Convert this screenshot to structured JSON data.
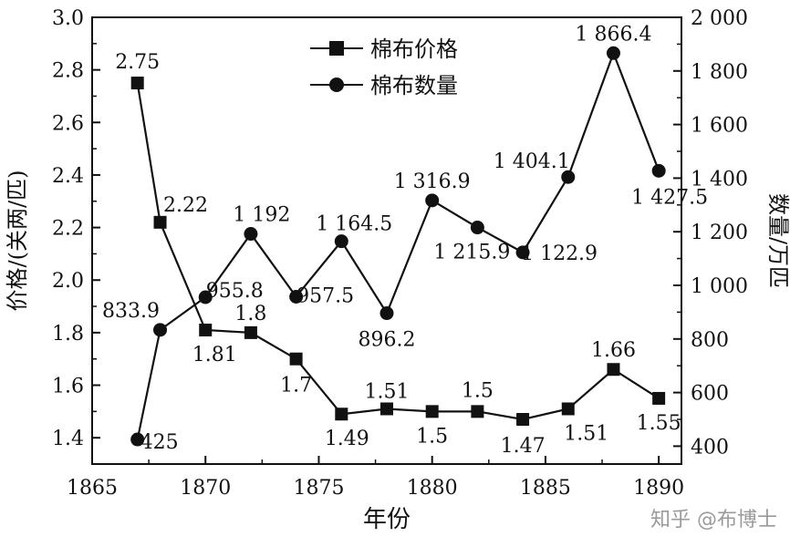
{
  "chart_data": {
    "type": "line",
    "x": [
      1867,
      1868,
      1870,
      1872,
      1874,
      1876,
      1878,
      1880,
      1882,
      1884,
      1886,
      1888,
      1890
    ],
    "series": [
      {
        "name": "棉布价格",
        "axis": "left",
        "marker": "square",
        "values": [
          2.75,
          2.22,
          1.81,
          1.8,
          1.7,
          1.49,
          1.51,
          1.5,
          1.5,
          1.47,
          1.51,
          1.66,
          1.55
        ],
        "labels": [
          "2.75",
          "2.22",
          "1.81",
          "1.8",
          "1.7",
          "1.49",
          "1.51",
          "1.5",
          "1.5",
          "1.47",
          "1.51",
          "1.66",
          "1.55"
        ]
      },
      {
        "name": "棉布数量",
        "axis": "right",
        "marker": "circle",
        "values": [
          425,
          833.9,
          955.8,
          1192,
          957.5,
          1164.5,
          896.2,
          1316.9,
          1215.9,
          1122.9,
          1404.1,
          1866.4,
          1427.5
        ],
        "labels": [
          "425",
          "833.9",
          "955.8",
          "1 192",
          "957.5",
          "1 164.5",
          "896.2",
          "1 316.9",
          "1 215.9",
          "1 122.9",
          "1 404.1",
          "1 866.4",
          "1 427.5"
        ]
      }
    ],
    "xlabel": "年份",
    "ylabel_left": "价格/(关两/匹)",
    "ylabel_right": "数量/万匹",
    "xlim": [
      1865,
      1891
    ],
    "ylim_left": [
      1.3,
      3.0
    ],
    "ylim_right": [
      333.33,
      2000
    ],
    "xticks": [
      "1865",
      "1870",
      "1875",
      "1880",
      "1885",
      "1890"
    ],
    "yticks_left": [
      "1.4",
      "1.6",
      "1.8",
      "2.0",
      "2.2",
      "2.4",
      "2.6",
      "2.8",
      "3.0"
    ],
    "yticks_right": [
      "400",
      "600",
      "800",
      "1 000",
      "1 200",
      "1 400",
      "1 600",
      "1 800",
      "2 000"
    ],
    "legend_position": "top-center",
    "grid": false
  },
  "watermark": "知乎 @布博士"
}
